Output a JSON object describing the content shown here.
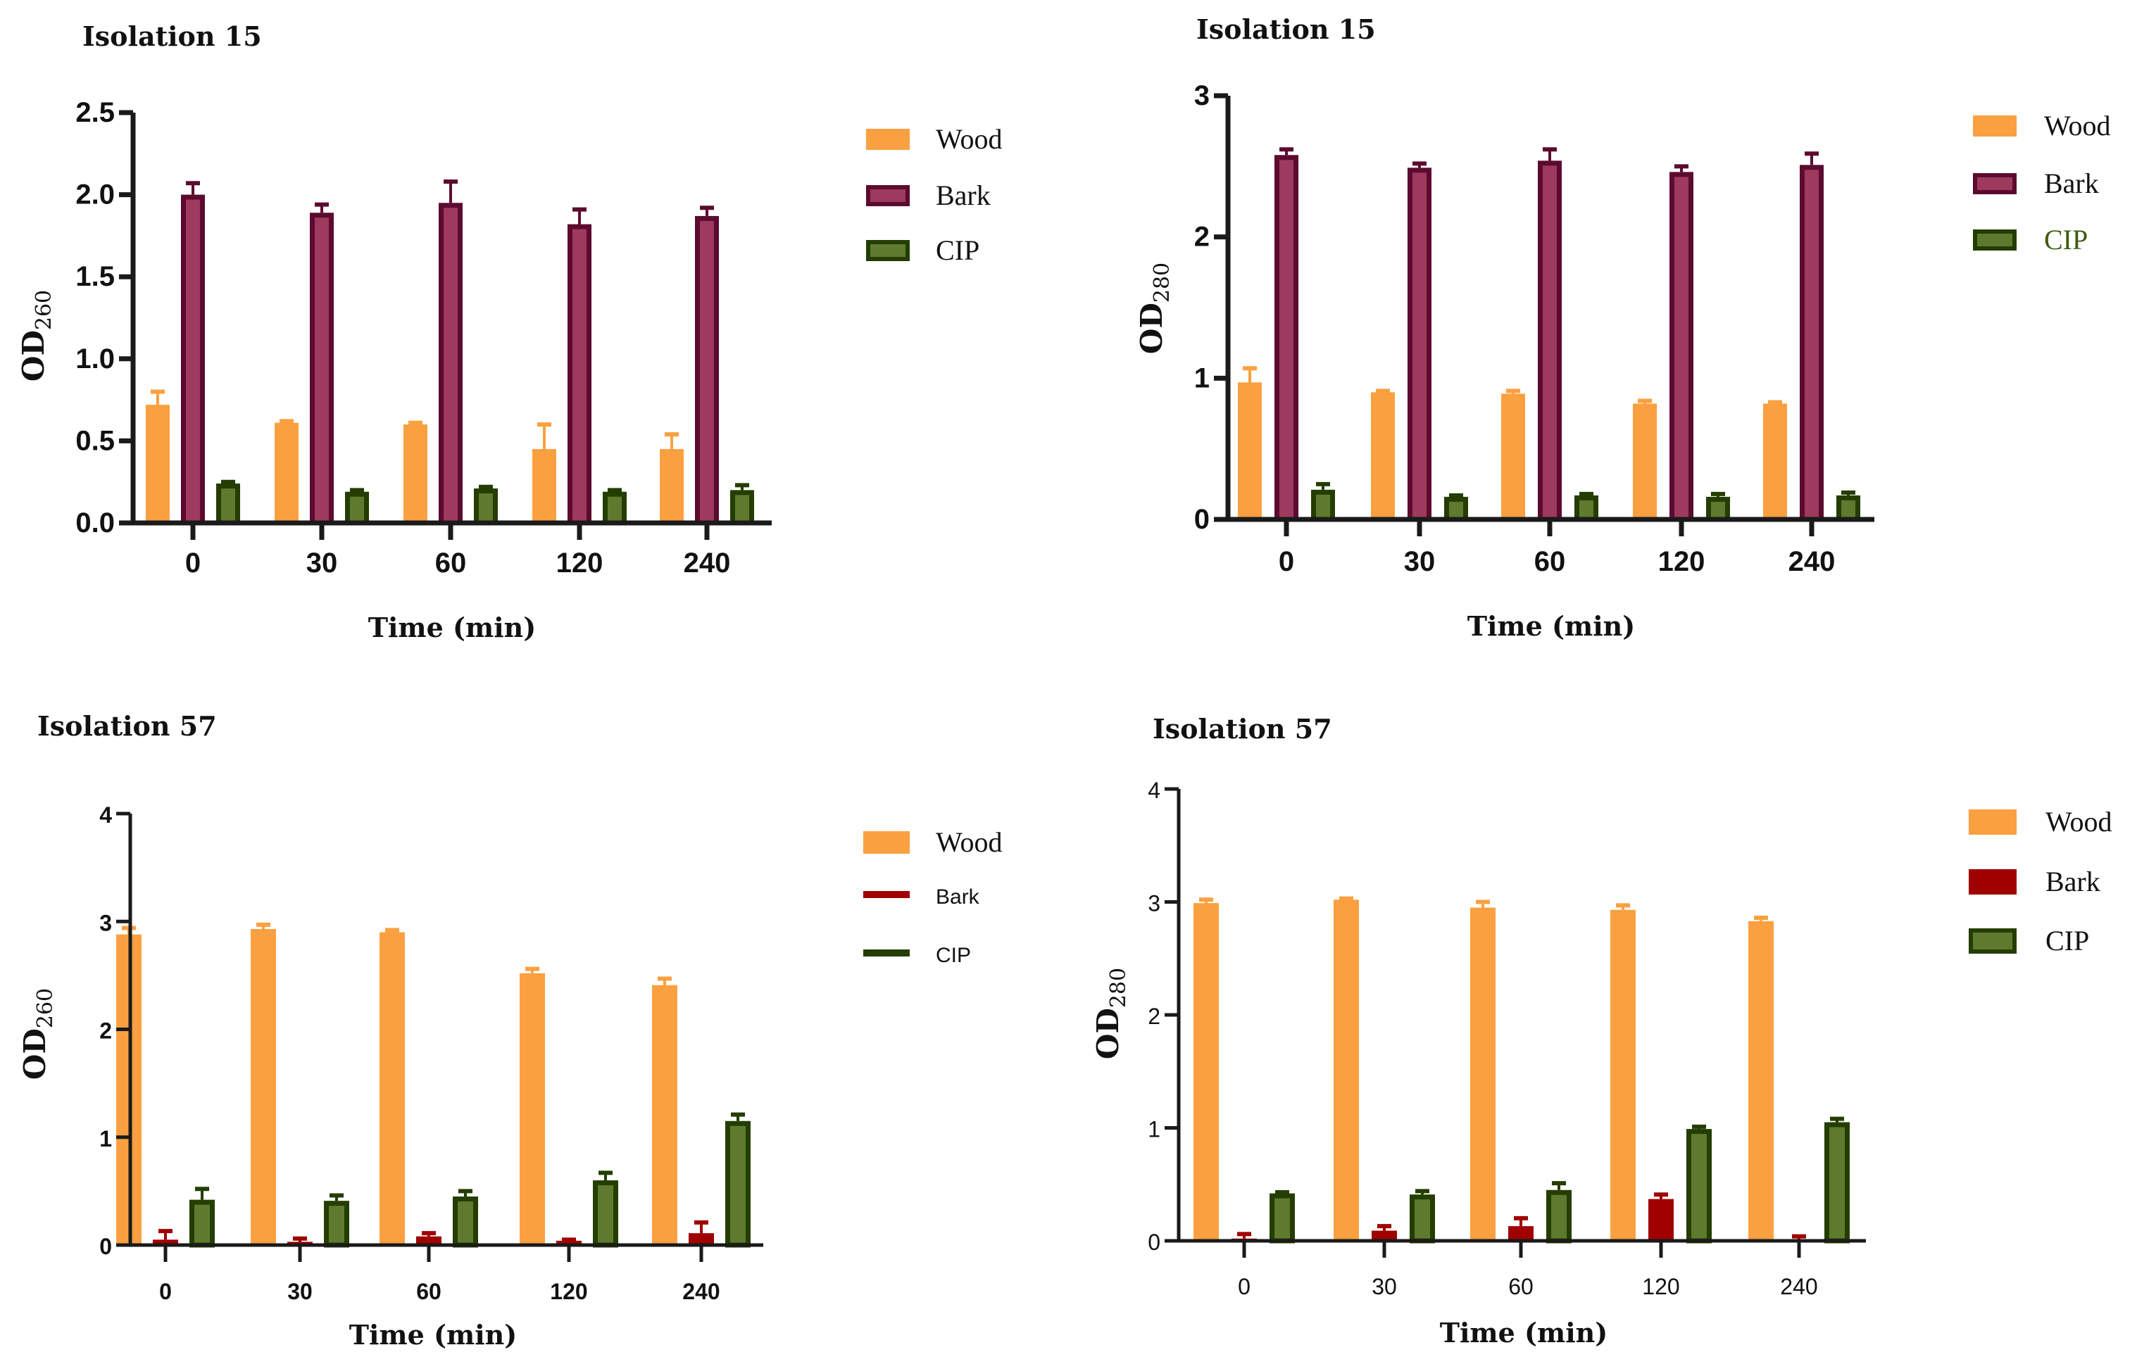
{
  "colors": {
    "wood": "#FBA040",
    "bark_fill": "#9E3A5E",
    "bark_border": "#5C0A30",
    "bark_red": "#A00000",
    "cip_fill": "#5E7A2E",
    "cip_border": "#243D00",
    "cip_legend_text": "#3F5A12"
  },
  "chart_data": [
    {
      "type": "bar",
      "title": "Isolation 15",
      "ylabel": "OD",
      "ylabel_sub": "260",
      "xlabel": "Time (min)",
      "categories": [
        "0",
        "30",
        "60",
        "120",
        "240"
      ],
      "ylim": [
        0,
        2.5
      ],
      "yticks": [
        0,
        0.5,
        1.0,
        1.5,
        2.0,
        2.5
      ],
      "ytick_labels": [
        "0.0",
        "0.5",
        "1.0",
        "1.5",
        "2.0",
        "2.5"
      ],
      "legend_position": "right",
      "series": [
        {
          "name": "Wood",
          "values": [
            0.72,
            0.61,
            0.6,
            0.45,
            0.45
          ],
          "errors": [
            0.08,
            0.01,
            0.01,
            0.15,
            0.09
          ]
        },
        {
          "name": "Bark",
          "values": [
            2.0,
            1.89,
            1.95,
            1.82,
            1.87
          ],
          "errors": [
            0.07,
            0.05,
            0.13,
            0.09,
            0.05
          ]
        },
        {
          "name": "CIP",
          "values": [
            0.24,
            0.19,
            0.21,
            0.19,
            0.2
          ],
          "errors": [
            0.01,
            0.01,
            0.01,
            0.01,
            0.03
          ]
        }
      ]
    },
    {
      "type": "bar",
      "title": "Isolation 15",
      "ylabel": "OD",
      "ylabel_sub": "280",
      "xlabel": "Time (min)",
      "categories": [
        "0",
        "30",
        "60",
        "120",
        "240"
      ],
      "ylim": [
        0,
        3
      ],
      "yticks": [
        0,
        1,
        2,
        3
      ],
      "ytick_labels": [
        "0",
        "1",
        "2",
        "3"
      ],
      "legend_position": "right",
      "series": [
        {
          "name": "Wood",
          "values": [
            0.97,
            0.9,
            0.89,
            0.82,
            0.82
          ],
          "errors": [
            0.1,
            0.01,
            0.02,
            0.02,
            0.01
          ]
        },
        {
          "name": "Bark",
          "values": [
            2.58,
            2.49,
            2.54,
            2.46,
            2.51
          ],
          "errors": [
            0.04,
            0.03,
            0.08,
            0.04,
            0.08
          ]
        },
        {
          "name": "CIP",
          "values": [
            0.21,
            0.16,
            0.17,
            0.16,
            0.17
          ],
          "errors": [
            0.04,
            0.01,
            0.01,
            0.02,
            0.02
          ]
        }
      ]
    },
    {
      "type": "bar",
      "title": "Isolation 57",
      "ylabel": "OD",
      "ylabel_sub": "260",
      "xlabel": "Time (min)",
      "categories": [
        "0",
        "30",
        "60",
        "120",
        "240"
      ],
      "ylim": [
        0,
        4
      ],
      "yticks": [
        0,
        1,
        2,
        3,
        4
      ],
      "ytick_labels": [
        "0",
        "1",
        "2",
        "3",
        "4"
      ],
      "legend_position": "right",
      "series": [
        {
          "name": "Wood",
          "values": [
            2.88,
            2.93,
            2.9,
            2.52,
            2.41
          ],
          "errors": [
            0.06,
            0.04,
            0.02,
            0.04,
            0.06
          ]
        },
        {
          "name": "Bark",
          "values": [
            0.05,
            0.03,
            0.08,
            0.04,
            0.11
          ],
          "errors": [
            0.08,
            0.03,
            0.03,
            0.01,
            0.1
          ]
        },
        {
          "name": "CIP",
          "values": [
            0.42,
            0.41,
            0.45,
            0.6,
            1.15
          ],
          "errors": [
            0.1,
            0.05,
            0.05,
            0.07,
            0.06
          ]
        }
      ]
    },
    {
      "type": "bar",
      "title": "Isolation 57",
      "ylabel": "OD",
      "ylabel_sub": "280",
      "xlabel": "Time (min)",
      "categories": [
        "0",
        "30",
        "60",
        "120",
        "240"
      ],
      "ylim": [
        0,
        4
      ],
      "yticks": [
        0,
        1,
        2,
        3,
        4
      ],
      "ytick_labels": [
        "0",
        "1",
        "2",
        "3",
        "4"
      ],
      "legend_position": "right",
      "series": [
        {
          "name": "Wood",
          "values": [
            2.99,
            3.02,
            2.95,
            2.93,
            2.83
          ],
          "errors": [
            0.03,
            0.01,
            0.05,
            0.04,
            0.03
          ]
        },
        {
          "name": "Bark",
          "values": [
            0.02,
            0.09,
            0.13,
            0.37,
            0.01
          ],
          "errors": [
            0.04,
            0.04,
            0.07,
            0.04,
            0.03
          ]
        },
        {
          "name": "CIP",
          "values": [
            0.42,
            0.41,
            0.45,
            0.99,
            1.05
          ],
          "errors": [
            0.01,
            0.03,
            0.06,
            0.02,
            0.03
          ]
        }
      ]
    }
  ]
}
